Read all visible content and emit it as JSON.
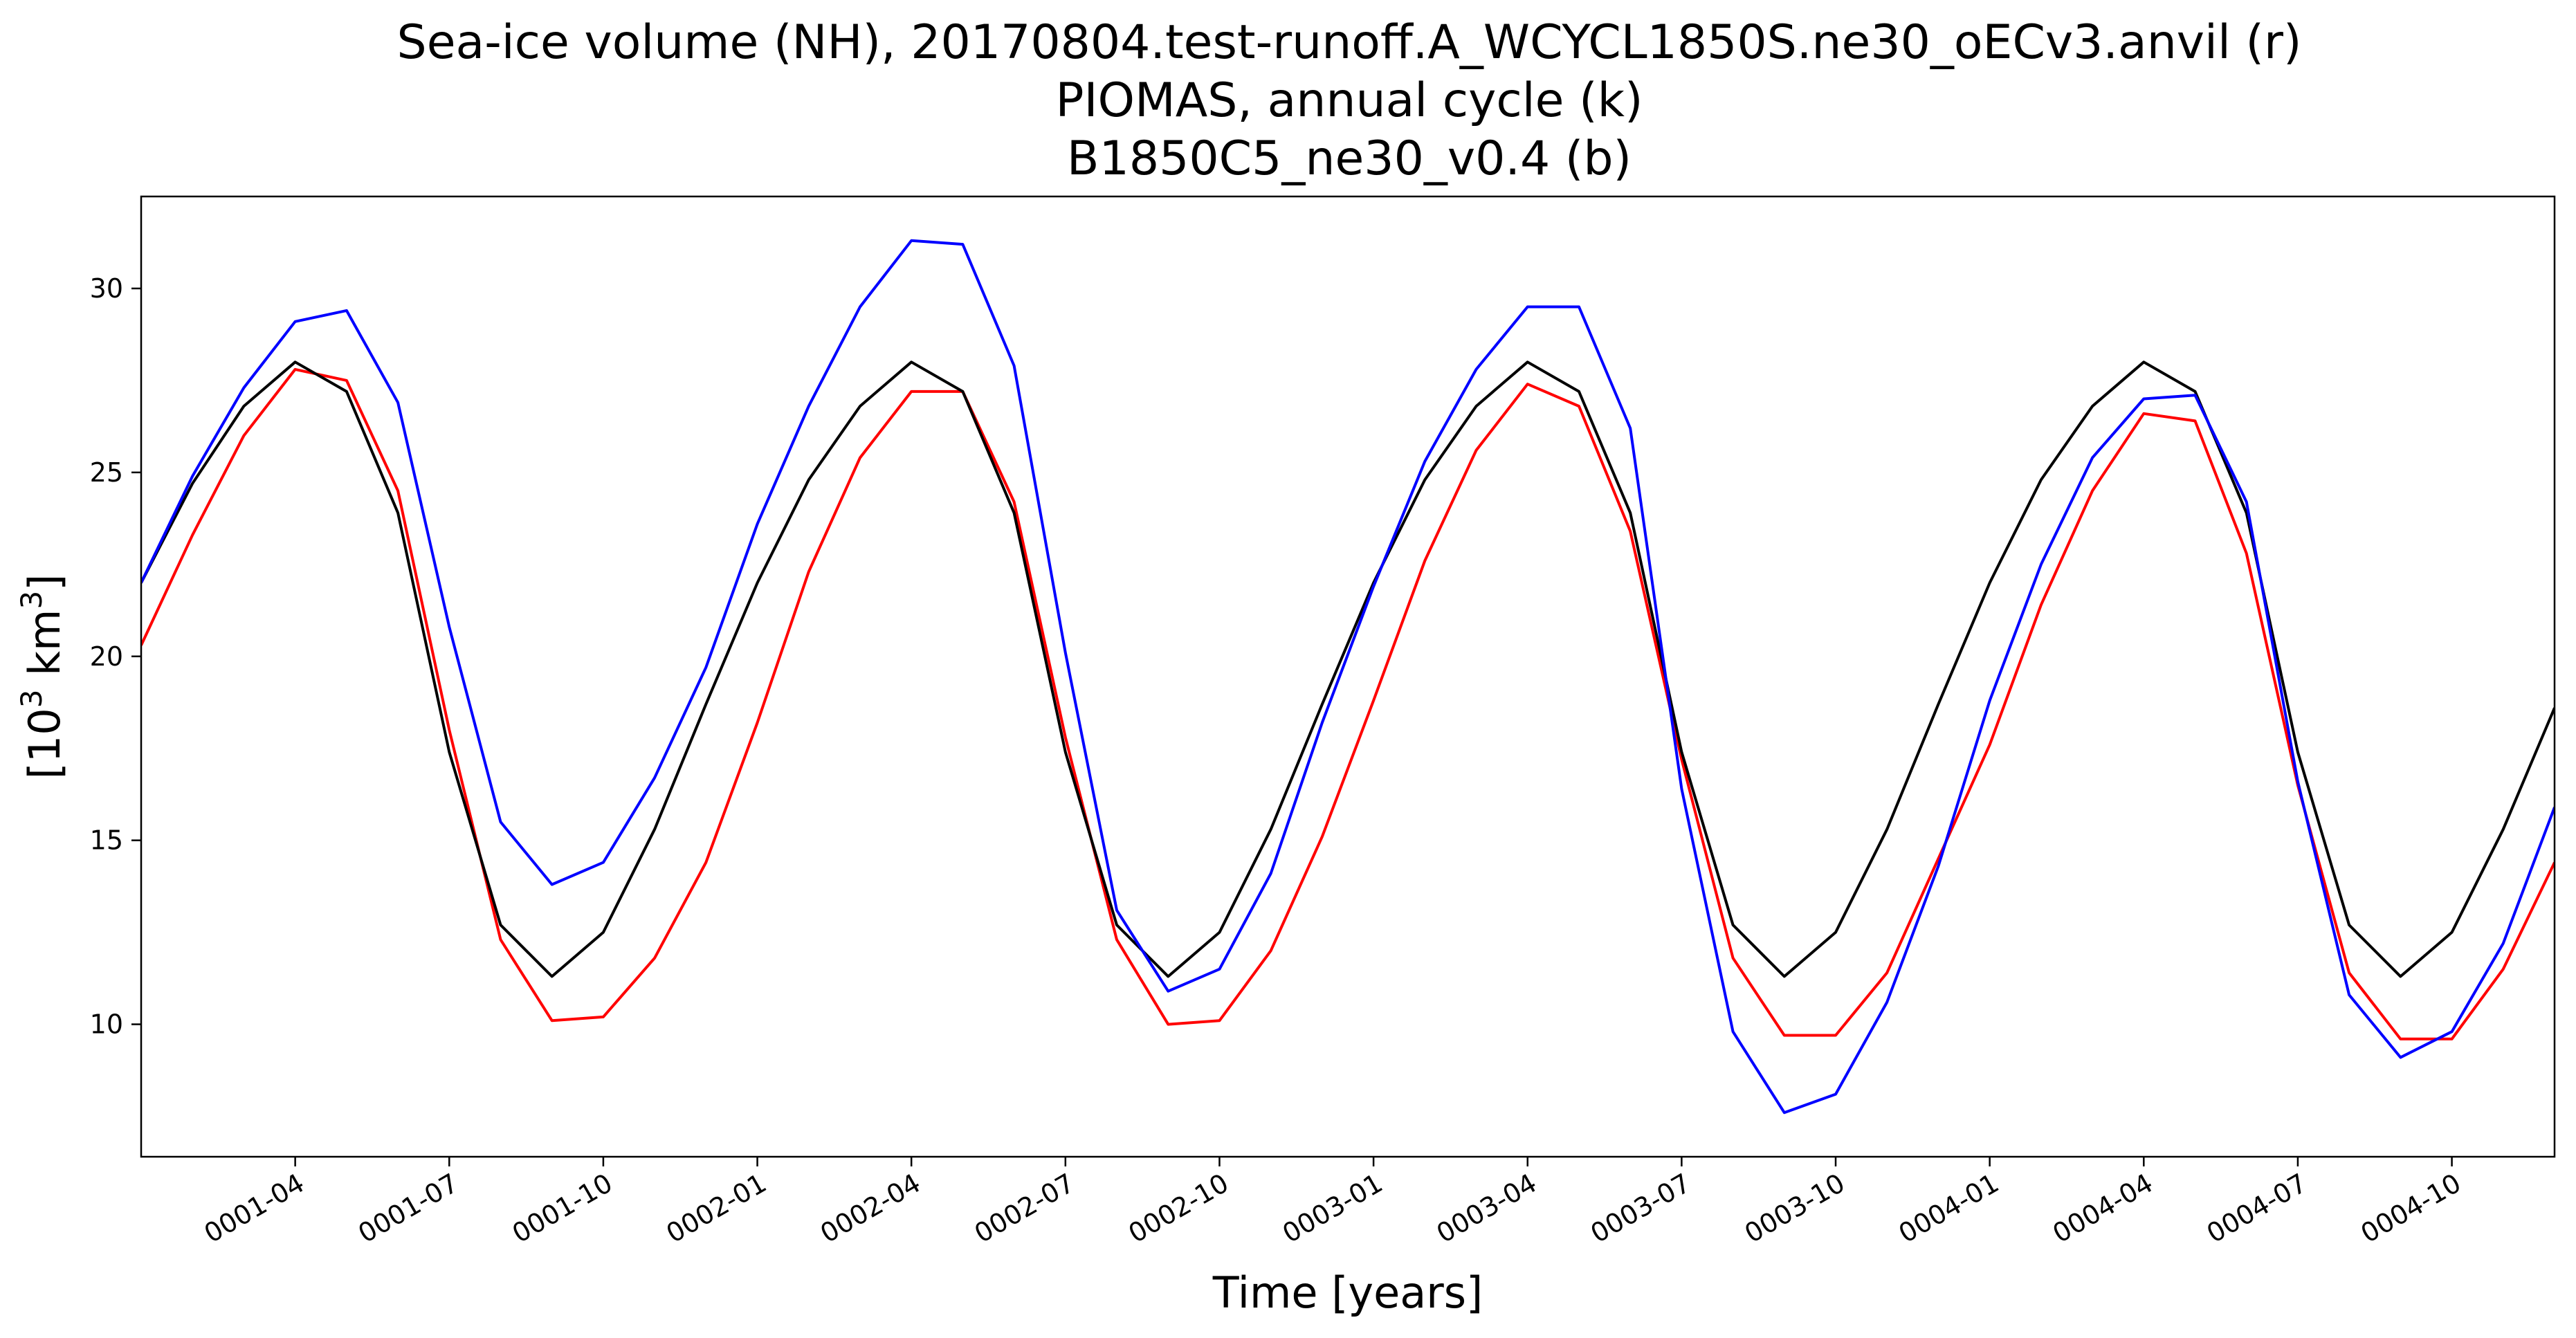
{
  "chart_data": {
    "type": "line",
    "title_lines": [
      "Sea-ice volume (NH), 20170804.test-runoff.A_WCYCL1850S.ne30_oECv3.anvil (r)",
      "PIOMAS, annual cycle (k)",
      "B1850C5_ne30_v0.4 (b)"
    ],
    "xlabel": "Time [years]",
    "ylabel_base": "[10",
    "ylabel_sup1": "3",
    "ylabel_mid": " km",
    "ylabel_sup2": "3",
    "ylabel_end": "]",
    "x_start": "0001-01",
    "x_end": "0004-12",
    "ylim": [
      6.4,
      32.5
    ],
    "y_ticks": [
      10,
      15,
      20,
      25,
      30
    ],
    "x_ticks": [
      {
        "month_index": 3,
        "label": "0001-04"
      },
      {
        "month_index": 6,
        "label": "0001-07"
      },
      {
        "month_index": 9,
        "label": "0001-10"
      },
      {
        "month_index": 12,
        "label": "0002-01"
      },
      {
        "month_index": 15,
        "label": "0002-04"
      },
      {
        "month_index": 18,
        "label": "0002-07"
      },
      {
        "month_index": 21,
        "label": "0002-10"
      },
      {
        "month_index": 24,
        "label": "0003-01"
      },
      {
        "month_index": 27,
        "label": "0003-04"
      },
      {
        "month_index": 30,
        "label": "0003-07"
      },
      {
        "month_index": 33,
        "label": "0003-10"
      },
      {
        "month_index": 36,
        "label": "0004-01"
      },
      {
        "month_index": 39,
        "label": "0004-04"
      },
      {
        "month_index": 42,
        "label": "0004-07"
      },
      {
        "month_index": 45,
        "label": "0004-10"
      }
    ],
    "series": [
      {
        "color": "#ff0000",
        "values": [
          20.3,
          23.3,
          26.0,
          27.8,
          27.5,
          24.5,
          18.0,
          12.3,
          10.1,
          10.2,
          11.8,
          14.4,
          18.2,
          22.3,
          25.4,
          27.2,
          27.2,
          24.2,
          17.8,
          12.3,
          10.0,
          10.1,
          12.0,
          15.1,
          18.8,
          22.6,
          25.6,
          27.4,
          26.8,
          23.4,
          17.2,
          11.8,
          9.7,
          9.7,
          11.4,
          14.5,
          17.6,
          21.4,
          24.5,
          26.6,
          26.4,
          22.8,
          16.5,
          11.4,
          9.6,
          9.6,
          11.5,
          14.4
        ]
      },
      {
        "color": "#000000",
        "values": [
          22.0,
          24.7,
          26.8,
          28.0,
          27.2,
          23.9,
          17.4,
          12.7,
          11.3,
          12.5,
          15.3,
          18.7,
          22.0,
          24.8,
          26.8,
          28.0,
          27.2,
          23.9,
          17.4,
          12.7,
          11.3,
          12.5,
          15.3,
          18.7,
          22.0,
          24.8,
          26.8,
          28.0,
          27.2,
          23.9,
          17.4,
          12.7,
          11.3,
          12.5,
          15.3,
          18.7,
          22.0,
          24.8,
          26.8,
          28.0,
          27.2,
          23.9,
          17.4,
          12.7,
          11.3,
          12.5,
          15.3,
          18.6
        ]
      },
      {
        "color": "#0000ff",
        "values": [
          22.0,
          24.9,
          27.3,
          29.1,
          29.4,
          26.9,
          20.8,
          15.5,
          13.8,
          14.4,
          16.7,
          19.7,
          23.6,
          26.8,
          29.5,
          31.3,
          31.2,
          27.9,
          20.1,
          13.1,
          10.9,
          11.5,
          14.1,
          18.2,
          21.9,
          25.3,
          27.8,
          29.5,
          29.5,
          26.2,
          16.4,
          9.8,
          7.6,
          8.1,
          10.6,
          14.3,
          18.8,
          22.5,
          25.4,
          27.0,
          27.1,
          24.2,
          16.6,
          10.8,
          9.1,
          9.8,
          12.2,
          15.9
        ]
      }
    ]
  }
}
